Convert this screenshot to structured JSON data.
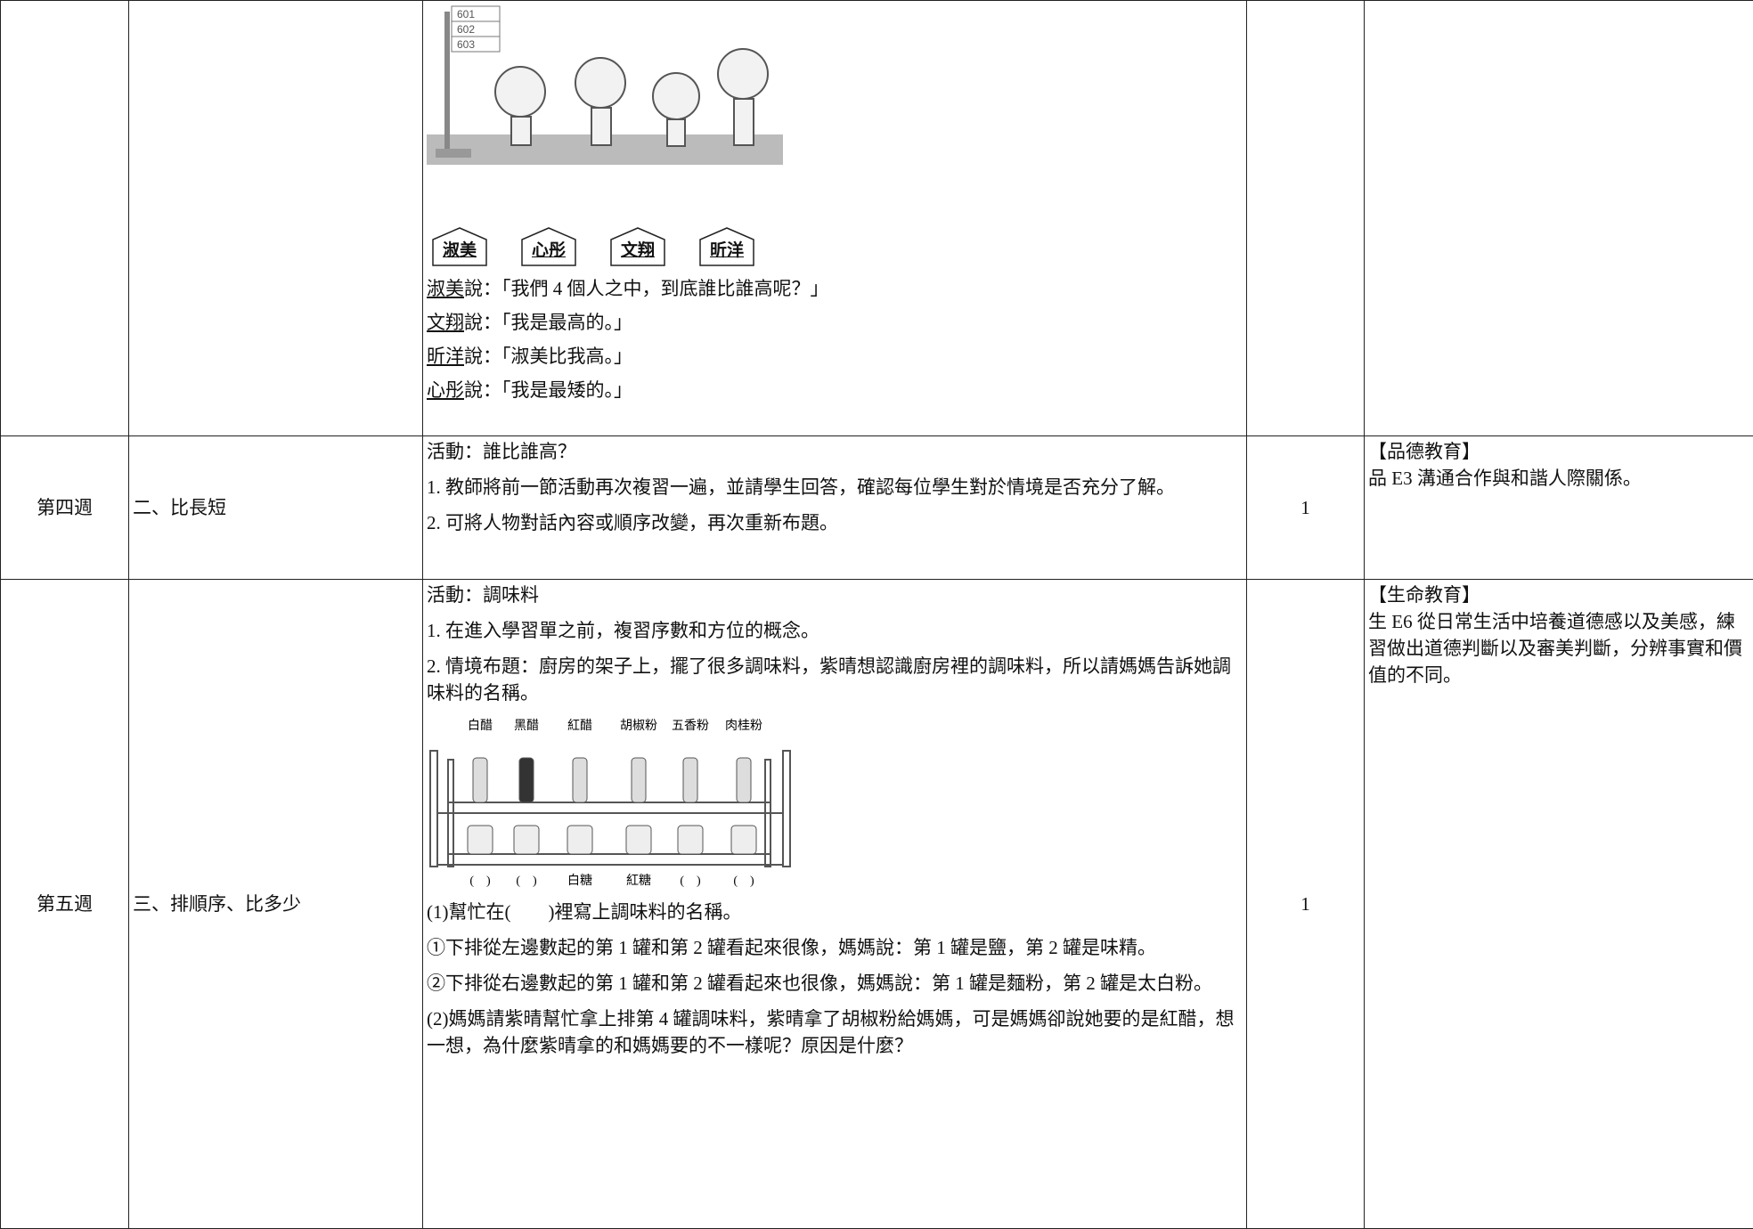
{
  "table": {
    "rows": [
      {
        "figure": {
          "signs": [
            "601",
            "602",
            "603"
          ],
          "name_tags": [
            "淑美",
            "心彤",
            "文翔",
            "昕洋"
          ]
        },
        "dialogue": [
          {
            "speaker": "淑美",
            "text": "說：「我們 4 個人之中，到底誰比誰高呢？」"
          },
          {
            "speaker": "文翔",
            "text": "說：「我是最高的。」"
          },
          {
            "speaker": "昕洋",
            "text": "說：「淑美比我高。」"
          },
          {
            "speaker": "心彤",
            "text": "說：「我是最矮的。」"
          }
        ]
      },
      {
        "week": "第四週",
        "unit": "二、比長短",
        "activity": [
          "活動：誰比誰高？",
          "1. 教師將前一節活動再次複習一遍，並請學生回答，確認每位學生對於情境是否充分了解。",
          "2. 可將人物對話內容或順序改變，再次重新布題。"
        ],
        "periods": 1,
        "topics": [
          "【品德教育】",
          "品 E3 溝通合作與和諧人際關係。"
        ]
      },
      {
        "week": "第五週",
        "unit": "三、排順序、比多少",
        "activity": [
          "活動：調味料",
          "1. 在進入學習單之前，複習序數和方位的概念。",
          "2. 情境布題：廚房的架子上，擺了很多調味料，紫晴想認識廚房裡的調味料，所以請媽媽告訴她調味料的名稱。"
        ],
        "figure": {
          "top_labels": [
            "白醋",
            "黑醋",
            "紅醋",
            "胡椒粉",
            "五香粉",
            "肉桂粉"
          ],
          "bottom_labels": [
            "(　)",
            "(　)",
            "白糖",
            "紅糖",
            "(　)",
            "(　)"
          ]
        },
        "questions": [
          "(1)幫忙在(　　)裡寫上調味料的名稱。",
          "①下排從左邊數起的第 1 罐和第 2 罐看起來很像，媽媽說：第 1 罐是鹽，第 2 罐是味精。",
          "②下排從右邊數起的第 1 罐和第 2 罐看起來也很像，媽媽說：第 1 罐是麵粉，第 2 罐是太白粉。",
          "(2)媽媽請紫晴幫忙拿上排第 4 罐調味料，紫晴拿了胡椒粉給媽媽，可是媽媽卻說她要的是紅醋，想一想，為什麼紫晴拿的和媽媽要的不一樣呢？原因是什麼？"
        ],
        "periods": 1,
        "topics": [
          "【生命教育】",
          "生 E6 從日常生活中培養道德感以及美感，練習做出道德判斷以及審美判斷，分辨事實和價值的不同。"
        ]
      }
    ]
  }
}
